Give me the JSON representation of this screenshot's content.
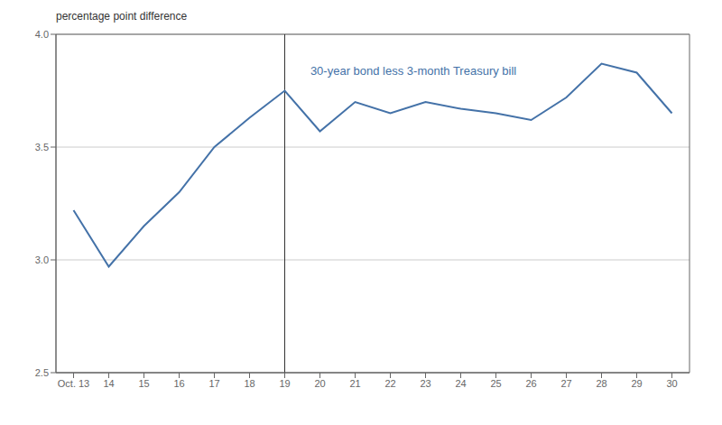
{
  "chart_data": {
    "type": "line",
    "y_label": "percentage point difference",
    "x": [
      13,
      14,
      15,
      16,
      17,
      18,
      19,
      20,
      21,
      22,
      23,
      24,
      25,
      26,
      27,
      28,
      29,
      30
    ],
    "values": [
      3.22,
      2.97,
      3.15,
      3.3,
      3.5,
      3.63,
      3.75,
      3.57,
      3.7,
      3.65,
      3.7,
      3.67,
      3.65,
      3.62,
      3.72,
      3.87,
      3.83,
      3.65
    ],
    "color": "#4472a8",
    "xlim": [
      12.5,
      30.5
    ],
    "xticks": [
      {
        "value": 13,
        "label": "Oct. 13"
      },
      14,
      15,
      16,
      17,
      18,
      19,
      20,
      21,
      22,
      23,
      24,
      25,
      26,
      27,
      28,
      29,
      30
    ],
    "ylim": [
      2.5,
      4.0
    ],
    "yticks": [
      2.5,
      {
        "value": 3,
        "label": "3.0"
      },
      3.5,
      {
        "value": 4,
        "label": "4.0"
      }
    ],
    "grid": true,
    "vlines": [
      {
        "x": 19,
        "color": "#333333"
      }
    ],
    "annotations": [
      {
        "text": "30-year bond less 3-month Treasury bill",
        "x": 19.6,
        "y": 3.84,
        "color": "#4472a8"
      }
    ]
  }
}
